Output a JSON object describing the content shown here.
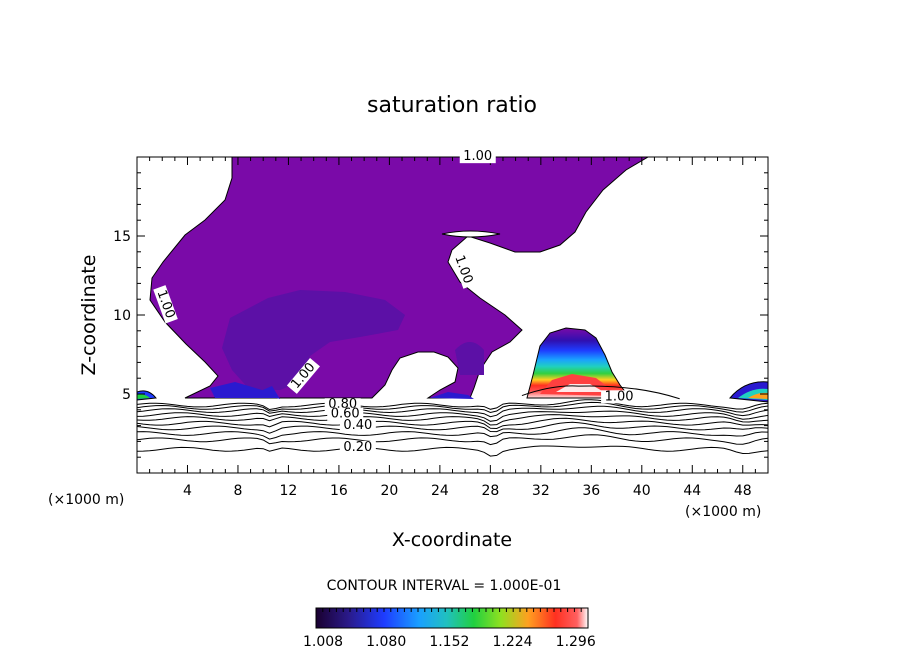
{
  "chart_data": {
    "type": "contour",
    "title": "saturation ratio",
    "xlabel": "X-coordinate",
    "ylabel": "Z-coordinate",
    "x_unit": "(×1000 m)",
    "z_unit": "(×1000 m)",
    "xlim": [
      0,
      50
    ],
    "ylim": [
      0,
      20
    ],
    "x_ticks": [
      4,
      8,
      12,
      16,
      20,
      24,
      28,
      32,
      36,
      40,
      44,
      48
    ],
    "y_ticks": [
      5,
      10,
      15
    ],
    "contour_labels": [
      {
        "text": "1.00",
        "x": 27,
        "y": 19.8
      },
      {
        "text": "1.00",
        "x": 25.6,
        "y": 12.8
      },
      {
        "text": "1.00",
        "x": 2,
        "y": 10.6
      },
      {
        "text": "1.00",
        "x": 13.4,
        "y": 6.0
      },
      {
        "text": "1.00",
        "x": 38.2,
        "y": 4.6
      },
      {
        "text": "0.80",
        "x": 16.3,
        "y": 4.1
      },
      {
        "text": "0.60",
        "x": 16.5,
        "y": 3.5
      },
      {
        "text": "0.40",
        "x": 17.5,
        "y": 2.8
      },
      {
        "text": "0.20",
        "x": 17.5,
        "y": 1.4
      }
    ],
    "contour_interval_text": "CONTOUR INTERVAL = 1.000E-01",
    "colorbar": {
      "min": 1.0,
      "max": 1.31,
      "tick_labels": [
        "1.008",
        "1.080",
        "1.152",
        "1.224",
        "1.296"
      ],
      "colors": [
        "#1a0030",
        "#2a1a8a",
        "#1e3cff",
        "#1aa0ff",
        "#20e0e0",
        "#20d040",
        "#70e020",
        "#d0e020",
        "#ffa020",
        "#ff3020",
        "#ff5050",
        "#ffffff"
      ]
    }
  }
}
